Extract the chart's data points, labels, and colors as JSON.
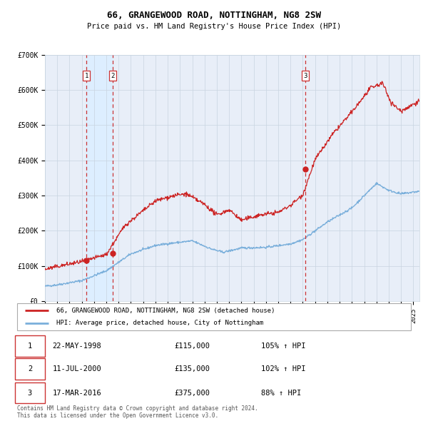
{
  "title": "66, GRANGEWOOD ROAD, NOTTINGHAM, NG8 2SW",
  "subtitle": "Price paid vs. HM Land Registry's House Price Index (HPI)",
  "legend_line1": "66, GRANGEWOOD ROAD, NOTTINGHAM, NG8 2SW (detached house)",
  "legend_line2": "HPI: Average price, detached house, City of Nottingham",
  "footer1": "Contains HM Land Registry data © Crown copyright and database right 2024.",
  "footer2": "This data is licensed under the Open Government Licence v3.0.",
  "sale_dates_num": [
    1998.388,
    2000.527,
    2016.206
  ],
  "sale_prices": [
    115000,
    135000,
    375000
  ],
  "sale_labels": [
    "1",
    "2",
    "3"
  ],
  "table_rows": [
    {
      "label": "1",
      "date": "22-MAY-1998",
      "price": "£115,000",
      "hpi": "105% ↑ HPI"
    },
    {
      "label": "2",
      "date": "11-JUL-2000",
      "price": "£135,000",
      "hpi": "102% ↑ HPI"
    },
    {
      "label": "3",
      "date": "17-MAR-2016",
      "price": "£375,000",
      "hpi": "88% ↑ HPI"
    }
  ],
  "xmin": 1995.0,
  "xmax": 2025.5,
  "ymin": 0,
  "ymax": 700000,
  "yticks": [
    0,
    100000,
    200000,
    300000,
    400000,
    500000,
    600000,
    700000
  ],
  "ytick_labels": [
    "£0",
    "£100K",
    "£200K",
    "£300K",
    "£400K",
    "£500K",
    "£600K",
    "£700K"
  ],
  "hpi_color": "#7aafdb",
  "price_color": "#cc2222",
  "dashed_line_color": "#cc3333",
  "shade_color": "#ddeeff",
  "grid_color": "#c8d4e0",
  "plot_bg_color": "#e8eef8"
}
